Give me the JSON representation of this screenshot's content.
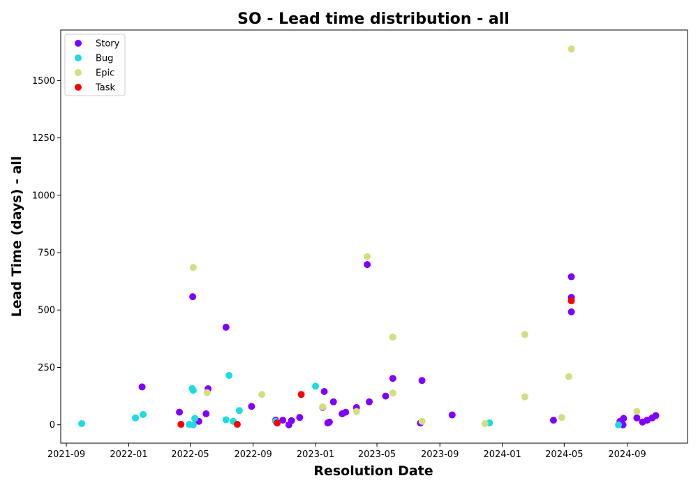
{
  "chart_data": {
    "type": "scatter",
    "title": "SO - Lead time distribution - all",
    "xlabel": "Resolution Date",
    "ylabel": "Lead Time (days) - all",
    "x_ticks": [
      "2021-09",
      "2022-01",
      "2022-05",
      "2022-09",
      "2023-01",
      "2023-05",
      "2023-09",
      "2024-01",
      "2024-05",
      "2024-09"
    ],
    "y_ticks": [
      "0",
      "250",
      "500",
      "750",
      "1000",
      "1250",
      "1500"
    ],
    "xlim": [
      "2021-08-21",
      "2024-12-28"
    ],
    "ylim": [
      -80,
      1720
    ],
    "legend_position": "top-left",
    "series": [
      {
        "name": "Story",
        "color": "#8000ff",
        "points": [
          {
            "x": "2022-01-27",
            "y": 165
          },
          {
            "x": "2022-04-10",
            "y": 55
          },
          {
            "x": "2022-05-06",
            "y": 558
          },
          {
            "x": "2022-05-18",
            "y": 15
          },
          {
            "x": "2022-06-01",
            "y": 48
          },
          {
            "x": "2022-06-05",
            "y": 157
          },
          {
            "x": "2022-07-10",
            "y": 425
          },
          {
            "x": "2022-08-29",
            "y": 80
          },
          {
            "x": "2022-10-15",
            "y": 20
          },
          {
            "x": "2022-10-29",
            "y": 20
          },
          {
            "x": "2022-11-10",
            "y": 0
          },
          {
            "x": "2022-11-15",
            "y": 18
          },
          {
            "x": "2022-12-01",
            "y": 32
          },
          {
            "x": "2023-01-15",
            "y": 76
          },
          {
            "x": "2023-01-18",
            "y": 145
          },
          {
            "x": "2023-01-25",
            "y": 8
          },
          {
            "x": "2023-01-28",
            "y": 12
          },
          {
            "x": "2023-02-05",
            "y": 100
          },
          {
            "x": "2023-02-22",
            "y": 48
          },
          {
            "x": "2023-03-01",
            "y": 55
          },
          {
            "x": "2023-03-22",
            "y": 75
          },
          {
            "x": "2023-04-12",
            "y": 698
          },
          {
            "x": "2023-04-16",
            "y": 100
          },
          {
            "x": "2023-05-18",
            "y": 125
          },
          {
            "x": "2023-06-01",
            "y": 202
          },
          {
            "x": "2023-07-25",
            "y": 8
          },
          {
            "x": "2023-07-28",
            "y": 193
          },
          {
            "x": "2023-09-25",
            "y": 43
          },
          {
            "x": "2024-04-10",
            "y": 20
          },
          {
            "x": "2024-05-15",
            "y": 645
          },
          {
            "x": "2024-05-15",
            "y": 555
          },
          {
            "x": "2024-05-15",
            "y": 492
          },
          {
            "x": "2024-08-18",
            "y": 15
          },
          {
            "x": "2024-08-24",
            "y": 0
          },
          {
            "x": "2024-08-25",
            "y": 28
          },
          {
            "x": "2024-09-20",
            "y": 30
          },
          {
            "x": "2024-10-01",
            "y": 12
          },
          {
            "x": "2024-10-10",
            "y": 20
          },
          {
            "x": "2024-10-20",
            "y": 30
          },
          {
            "x": "2024-10-27",
            "y": 40
          }
        ]
      },
      {
        "name": "Bug",
        "color": "#1ddbe0",
        "points": [
          {
            "x": "2021-10-01",
            "y": 5
          },
          {
            "x": "2022-01-14",
            "y": 30
          },
          {
            "x": "2022-01-29",
            "y": 45
          },
          {
            "x": "2022-04-29",
            "y": 2
          },
          {
            "x": "2022-05-05",
            "y": 158
          },
          {
            "x": "2022-05-07",
            "y": 150
          },
          {
            "x": "2022-05-07",
            "y": 0
          },
          {
            "x": "2022-05-10",
            "y": 28
          },
          {
            "x": "2022-07-10",
            "y": 22
          },
          {
            "x": "2022-07-16",
            "y": 215
          },
          {
            "x": "2022-07-24",
            "y": 15
          },
          {
            "x": "2022-08-05",
            "y": 62
          },
          {
            "x": "2022-10-15",
            "y": 15
          },
          {
            "x": "2023-01-01",
            "y": 168
          },
          {
            "x": "2023-12-07",
            "y": 8
          },
          {
            "x": "2024-08-15",
            "y": 0
          }
        ]
      },
      {
        "name": "Epic",
        "color": "#d4dd80",
        "points": [
          {
            "x": "2022-05-07",
            "y": 685
          },
          {
            "x": "2022-06-03",
            "y": 140
          },
          {
            "x": "2022-09-18",
            "y": 132
          },
          {
            "x": "2023-01-15",
            "y": 78
          },
          {
            "x": "2023-03-22",
            "y": 58
          },
          {
            "x": "2023-04-12",
            "y": 733
          },
          {
            "x": "2023-06-01",
            "y": 138
          },
          {
            "x": "2023-06-01",
            "y": 382
          },
          {
            "x": "2023-07-28",
            "y": 15
          },
          {
            "x": "2023-11-28",
            "y": 5
          },
          {
            "x": "2024-02-14",
            "y": 393
          },
          {
            "x": "2024-02-14",
            "y": 122
          },
          {
            "x": "2024-04-26",
            "y": 32
          },
          {
            "x": "2024-05-10",
            "y": 210
          },
          {
            "x": "2024-05-15",
            "y": 1637
          },
          {
            "x": "2024-09-20",
            "y": 58
          }
        ]
      },
      {
        "name": "Task",
        "color": "#ff0000",
        "points": [
          {
            "x": "2022-04-13",
            "y": 2
          },
          {
            "x": "2022-08-01",
            "y": 2
          },
          {
            "x": "2022-10-18",
            "y": 8
          },
          {
            "x": "2022-12-04",
            "y": 132
          },
          {
            "x": "2024-05-15",
            "y": 540
          }
        ]
      }
    ]
  }
}
